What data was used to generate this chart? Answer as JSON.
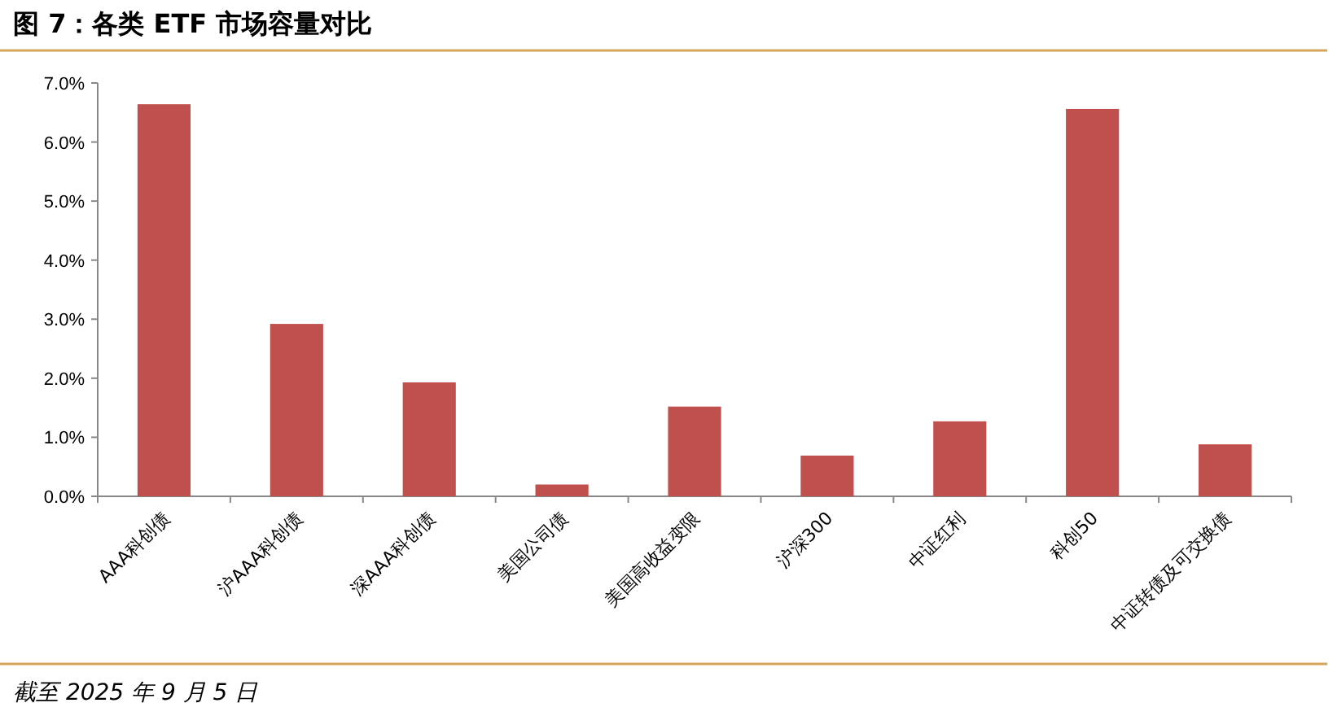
{
  "chart_data": {
    "type": "bar",
    "title": "图 7：各类 ETF 市场容量对比",
    "categories": [
      "AAA科创债",
      "沪AAA科创债",
      "深AAA科创债",
      "美国公司债",
      "美国高收益变限",
      "沪深300",
      "中证红利",
      "科创50",
      "中证转债及可交换债"
    ],
    "values": [
      6.64,
      2.92,
      1.93,
      0.2,
      1.52,
      0.69,
      1.27,
      6.56,
      0.88
    ],
    "color": "#c0504d",
    "ylim": [
      0,
      7
    ],
    "yticks": [
      {
        "value": 0,
        "label": "0.0%"
      },
      {
        "value": 1,
        "label": "1.0%"
      },
      {
        "value": 2,
        "label": "2.0%"
      },
      {
        "value": 3,
        "label": "3.0%"
      },
      {
        "value": 4,
        "label": "4.0%"
      },
      {
        "value": 5,
        "label": "5.0%"
      },
      {
        "value": 6,
        "label": "6.0%"
      },
      {
        "value": 7,
        "label": "7.0%"
      }
    ],
    "grid": false,
    "annotations": [
      "截至 2025 年 9 月 5 日"
    ]
  }
}
